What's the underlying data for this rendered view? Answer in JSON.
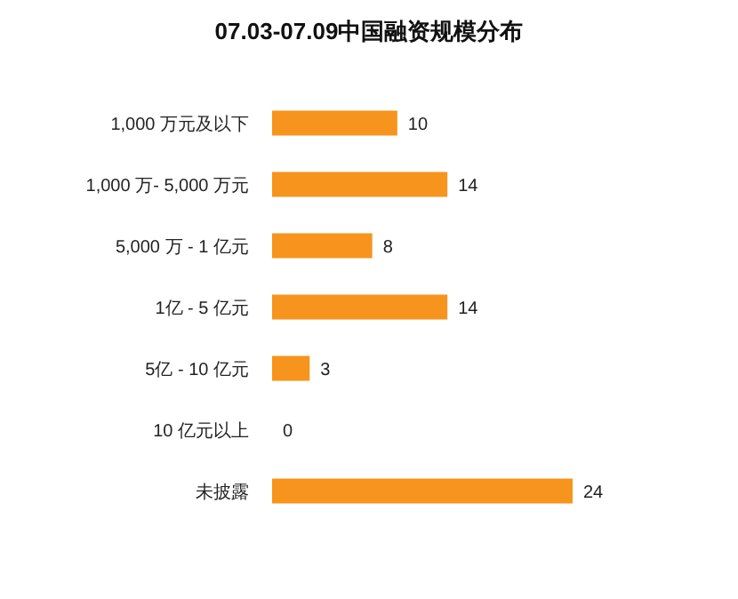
{
  "chart_data": {
    "type": "bar",
    "orientation": "horizontal",
    "title": "07.03-07.09中国融资规模分布",
    "categories": [
      "1,000 万元及以下",
      "1,000 万- 5,000 万元",
      "5,000 万 - 1 亿元",
      "1亿 - 5 亿元",
      "5亿 - 10 亿元",
      "10 亿元以上",
      "未披露"
    ],
    "values": [
      10,
      14,
      8,
      14,
      3,
      0,
      24
    ],
    "color": "#f7941d",
    "data_labels": true
  }
}
